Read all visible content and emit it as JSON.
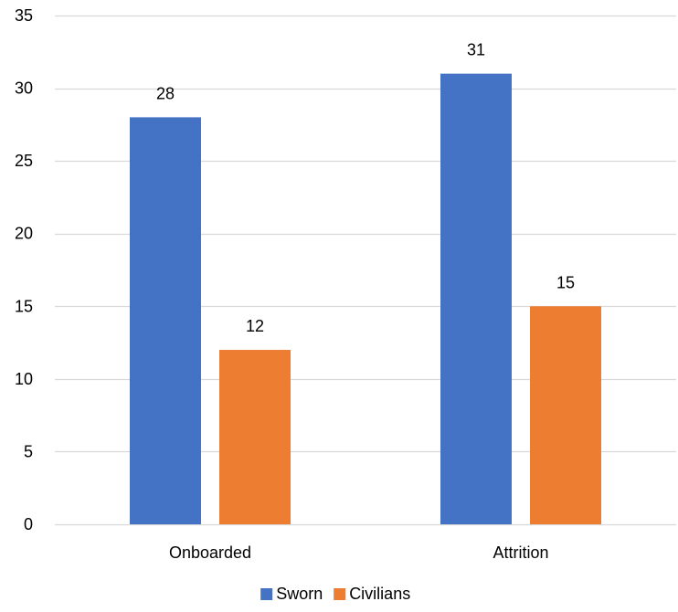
{
  "chart_data": {
    "type": "bar",
    "title": "",
    "xlabel": "",
    "ylabel": "",
    "categories": [
      "Onboarded",
      "Attrition"
    ],
    "series": [
      {
        "name": "Sworn",
        "values": [
          28,
          31
        ],
        "color": "#4472C4"
      },
      {
        "name": "Civilians",
        "values": [
          12,
          15
        ],
        "color": "#ED7D31"
      }
    ],
    "ylim": [
      0,
      35
    ],
    "yticks": [
      0,
      5,
      10,
      15,
      20,
      25,
      30,
      35
    ],
    "grid": true,
    "gridline_color": "#D9D9D9",
    "data_labels": true,
    "legend_position": "bottom"
  }
}
